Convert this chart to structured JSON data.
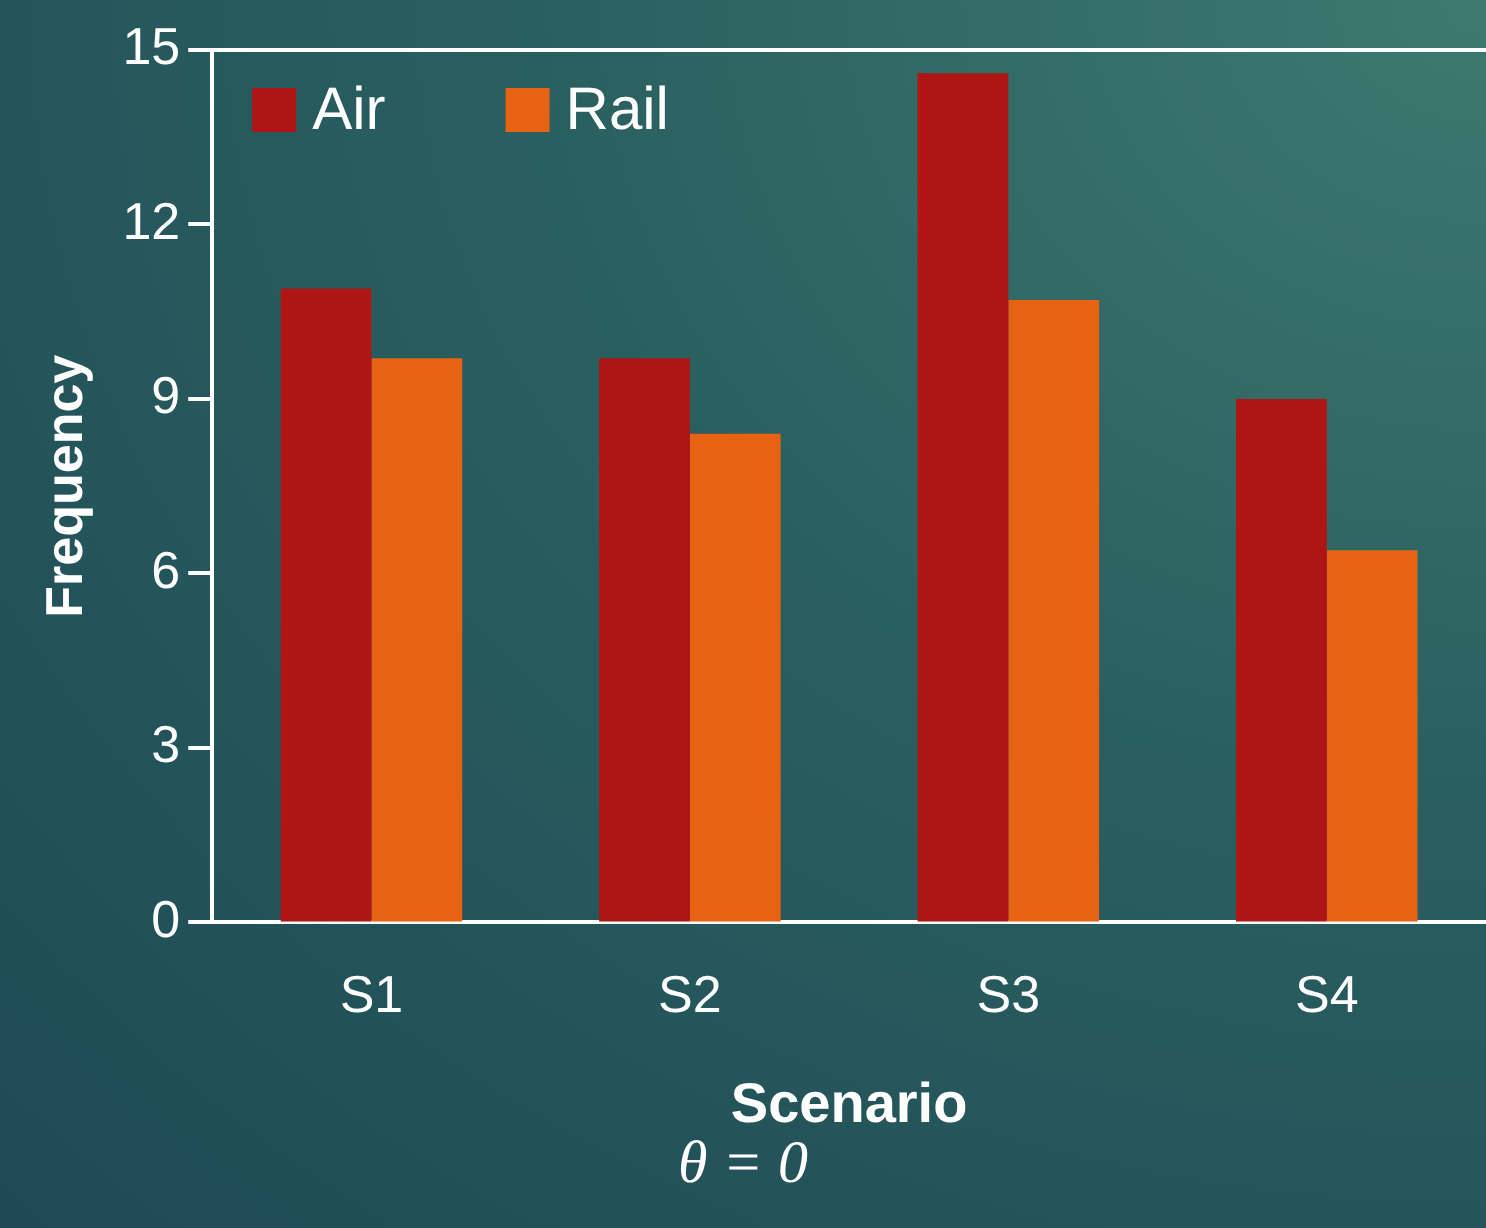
{
  "chart_data": {
    "type": "bar",
    "xlabel": "Scenario",
    "ylabel": "Frequency",
    "categories": [
      "S1",
      "S2",
      "S3",
      "S4"
    ],
    "series": [
      {
        "name": "Air",
        "color": "#af1515",
        "values": [
          10.9,
          9.7,
          14.6,
          9.0
        ]
      },
      {
        "name": "Rail",
        "color": "#e86213",
        "values": [
          9.7,
          8.4,
          10.7,
          6.4
        ]
      }
    ],
    "ylim": [
      0,
      15
    ],
    "yticks": [
      0,
      3,
      6,
      9,
      12,
      15
    ],
    "grid": false,
    "legend": "top left",
    "annotations": [
      "θ = 0"
    ]
  }
}
